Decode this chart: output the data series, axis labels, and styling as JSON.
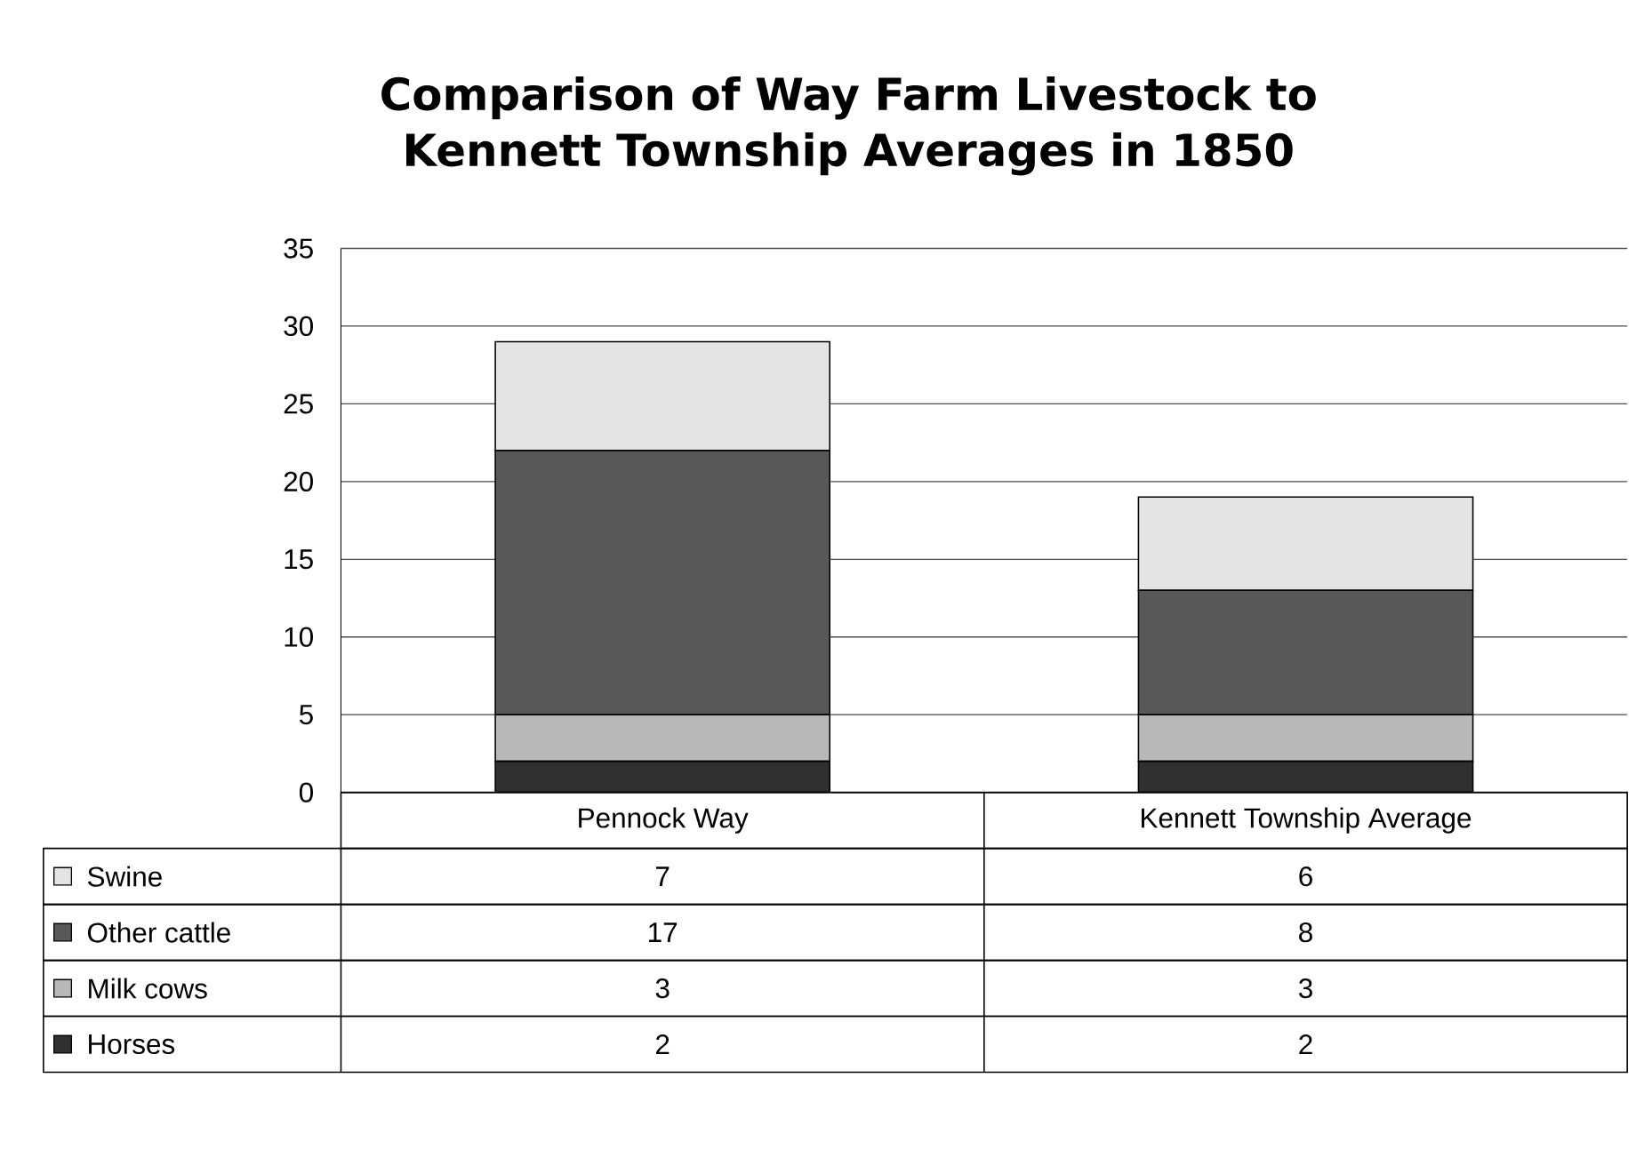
{
  "chart_data": {
    "type": "bar",
    "stacked": true,
    "title": "Comparison of Way Farm Livestock to Kennett Township Averages in 1850",
    "categories": [
      "Pennock Way",
      "Kennett Township Average"
    ],
    "series": [
      {
        "name": "Horses",
        "color": "#303030",
        "values": [
          2,
          2
        ]
      },
      {
        "name": "Milk cows",
        "color": "#b8b8b8",
        "values": [
          3,
          3
        ]
      },
      {
        "name": "Other cattle",
        "color": "#585858",
        "values": [
          17,
          8
        ]
      },
      {
        "name": "Swine",
        "color": "#e4e4e4",
        "values": [
          7,
          6
        ]
      }
    ],
    "ylim": [
      0,
      35
    ],
    "yticks": [
      0,
      5,
      10,
      15,
      20,
      25,
      30,
      35
    ],
    "grid": "y",
    "legend": "bottom",
    "data_labels": true
  }
}
